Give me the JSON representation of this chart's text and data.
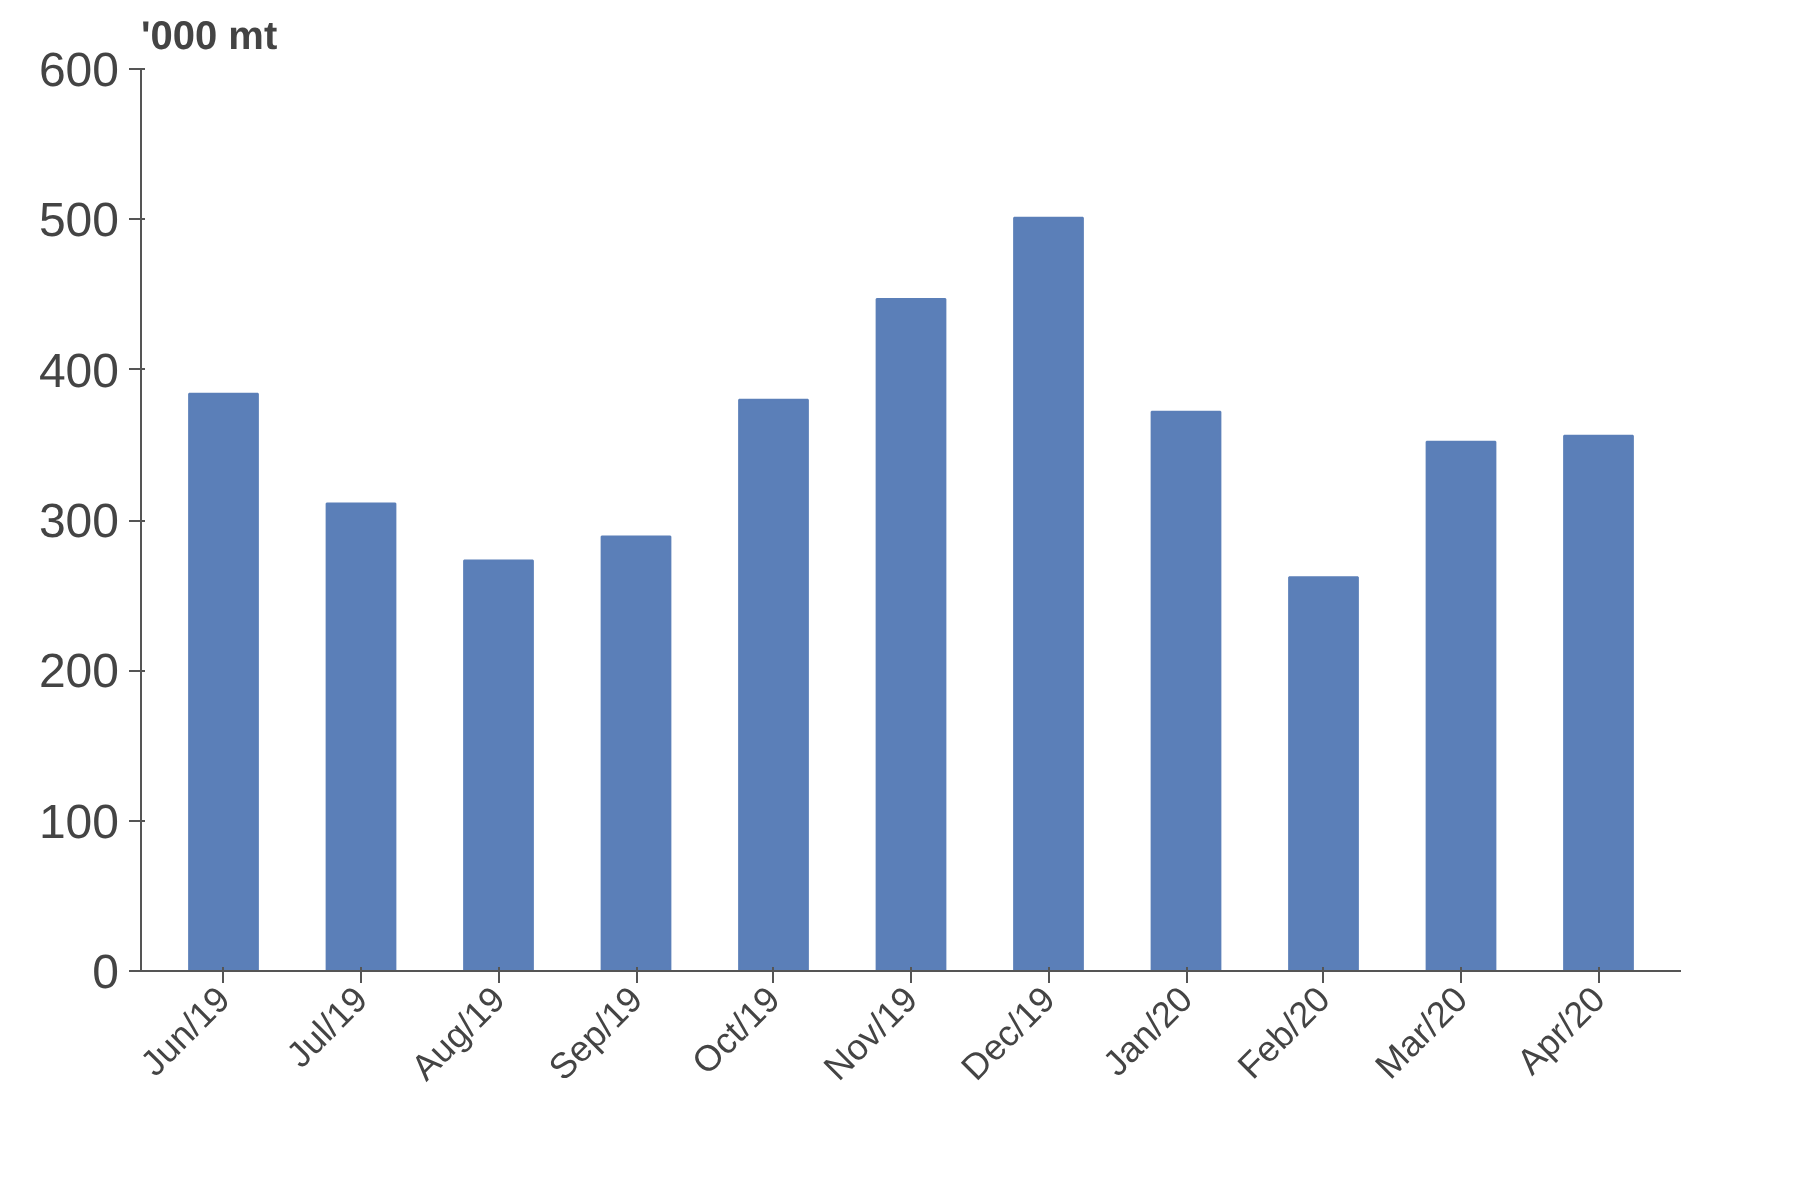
{
  "chart_data": {
    "type": "bar",
    "ylabel": "'000 mt",
    "categories": [
      "Jun/19",
      "Jul/19",
      "Aug/19",
      "Sep/19",
      "Oct/19",
      "Nov/19",
      "Dec/19",
      "Jan/20",
      "Feb/20",
      "Mar/20",
      "Apr/20"
    ],
    "values": [
      384,
      311,
      273,
      289,
      380,
      447,
      501,
      372,
      262,
      352,
      356
    ],
    "color": "#5b7fb8",
    "ylim": [
      0,
      600
    ],
    "yticks": [
      0,
      100,
      200,
      300,
      400,
      500,
      600
    ],
    "grid": false
  }
}
